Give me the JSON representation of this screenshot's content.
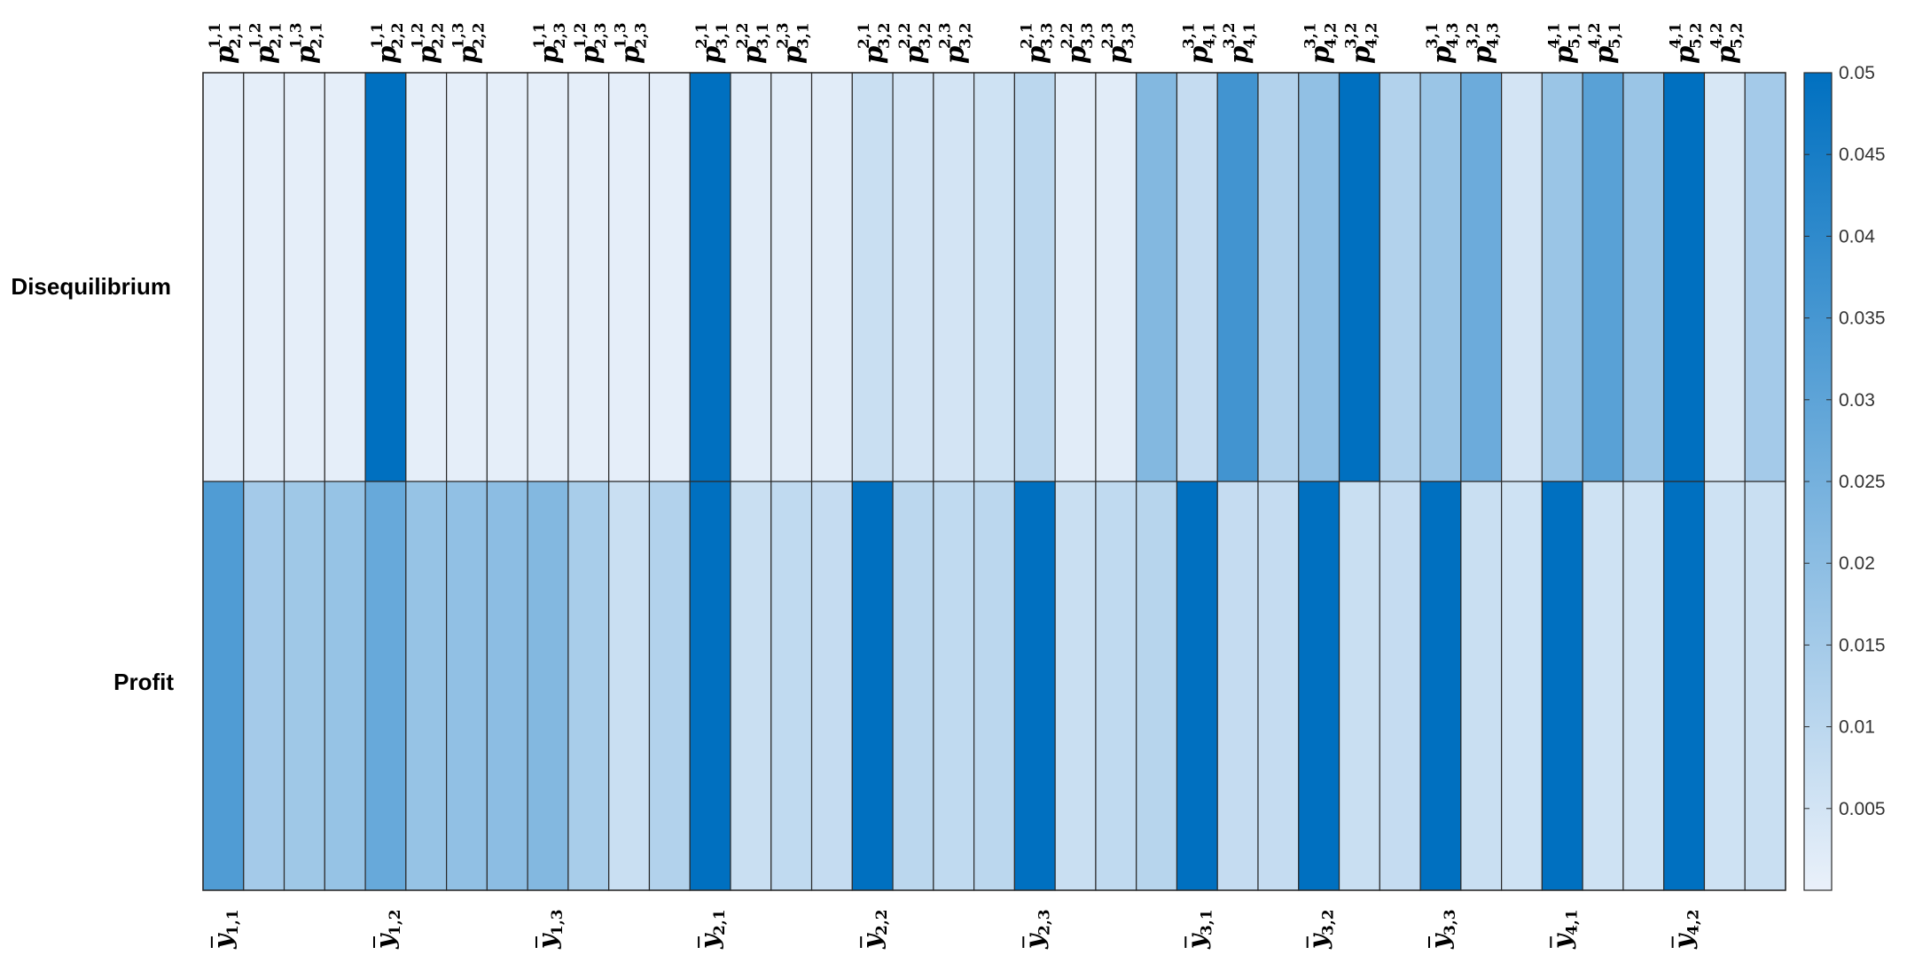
{
  "chart_data": {
    "type": "heatmap",
    "rows": [
      "Disequilibrium",
      "Profit"
    ],
    "top_labels": [
      {
        "s": "2,1",
        "u": "1,1"
      },
      {
        "s": "2,1",
        "u": "1,2"
      },
      {
        "s": "2,1",
        "u": "1,3"
      },
      {
        "s": "",
        "u": ""
      },
      {
        "s": "2,2",
        "u": "1,1"
      },
      {
        "s": "2,2",
        "u": "1,2"
      },
      {
        "s": "2,2",
        "u": "1,3"
      },
      {
        "s": "",
        "u": ""
      },
      {
        "s": "2,3",
        "u": "1,1"
      },
      {
        "s": "2,3",
        "u": "1,2"
      },
      {
        "s": "2,3",
        "u": "1,3"
      },
      {
        "s": "",
        "u": ""
      },
      {
        "s": "3,1",
        "u": "2,1"
      },
      {
        "s": "3,1",
        "u": "2,2"
      },
      {
        "s": "3,1",
        "u": "2,3"
      },
      {
        "s": "",
        "u": ""
      },
      {
        "s": "3,2",
        "u": "2,1"
      },
      {
        "s": "3,2",
        "u": "2,2"
      },
      {
        "s": "3,2",
        "u": "2,3"
      },
      {
        "s": "",
        "u": ""
      },
      {
        "s": "3,3",
        "u": "2,1"
      },
      {
        "s": "3,3",
        "u": "2,2"
      },
      {
        "s": "3,3",
        "u": "2,3"
      },
      {
        "s": "",
        "u": ""
      },
      {
        "s": "4,1",
        "u": "3,1"
      },
      {
        "s": "4,1",
        "u": "3,2"
      },
      {
        "s": "",
        "u": ""
      },
      {
        "s": "4,2",
        "u": "3,1"
      },
      {
        "s": "4,2",
        "u": "3,2"
      },
      {
        "s": "",
        "u": ""
      },
      {
        "s": "4,3",
        "u": "3,1"
      },
      {
        "s": "4,3",
        "u": "3,2"
      },
      {
        "s": "",
        "u": ""
      },
      {
        "s": "5,1",
        "u": "4,1"
      },
      {
        "s": "5,1",
        "u": "4,2"
      },
      {
        "s": "",
        "u": ""
      },
      {
        "s": "5,2",
        "u": "4,1"
      },
      {
        "s": "5,2",
        "u": "4,2"
      },
      {
        "s": "",
        "u": ""
      }
    ],
    "bottom_labels": [
      {
        "s": "1,1"
      },
      {
        "s": ""
      },
      {
        "s": ""
      },
      {
        "s": ""
      },
      {
        "s": "1,2"
      },
      {
        "s": ""
      },
      {
        "s": ""
      },
      {
        "s": ""
      },
      {
        "s": "1,3"
      },
      {
        "s": ""
      },
      {
        "s": ""
      },
      {
        "s": ""
      },
      {
        "s": "2,1"
      },
      {
        "s": ""
      },
      {
        "s": ""
      },
      {
        "s": ""
      },
      {
        "s": "2,2"
      },
      {
        "s": ""
      },
      {
        "s": ""
      },
      {
        "s": ""
      },
      {
        "s": "2,3"
      },
      {
        "s": ""
      },
      {
        "s": ""
      },
      {
        "s": ""
      },
      {
        "s": "3,1"
      },
      {
        "s": ""
      },
      {
        "s": ""
      },
      {
        "s": "3,2"
      },
      {
        "s": ""
      },
      {
        "s": ""
      },
      {
        "s": "3,3"
      },
      {
        "s": ""
      },
      {
        "s": ""
      },
      {
        "s": "4,1"
      },
      {
        "s": ""
      },
      {
        "s": ""
      },
      {
        "s": "4,2"
      },
      {
        "s": ""
      },
      {
        "s": ""
      }
    ],
    "values": [
      [
        0.001,
        0.001,
        0.001,
        0.001,
        0.05,
        0.001,
        0.001,
        0.001,
        0.001,
        0.001,
        0.001,
        0.001,
        0.05,
        0.002,
        0.002,
        0.002,
        0.007,
        0.005,
        0.005,
        0.006,
        0.01,
        0.002,
        0.002,
        0.022,
        0.008,
        0.036,
        0.012,
        0.019,
        0.05,
        0.012,
        0.017,
        0.027,
        0.005,
        0.017,
        0.031,
        0.017,
        0.05,
        0.004,
        0.015
      ],
      [
        0.033,
        0.015,
        0.016,
        0.018,
        0.028,
        0.018,
        0.019,
        0.02,
        0.022,
        0.014,
        0.007,
        0.012,
        0.05,
        0.007,
        0.009,
        0.008,
        0.05,
        0.01,
        0.009,
        0.01,
        0.05,
        0.007,
        0.009,
        0.011,
        0.05,
        0.008,
        0.008,
        0.05,
        0.007,
        0.008,
        0.05,
        0.007,
        0.006,
        0.05,
        0.006,
        0.006,
        0.05,
        0.006,
        0.007
      ]
    ],
    "colorbar": {
      "min": 0,
      "max": 0.05,
      "ticks": [
        "0.005",
        "0.01",
        "0.015",
        "0.02",
        "0.025",
        "0.03",
        "0.035",
        "0.04",
        "0.045",
        "0.05"
      ],
      "color_low": "#eaf1fa",
      "color_high": "#0070c0"
    },
    "colors": {
      "grid": "#2b2b2b",
      "text": "#000000"
    }
  }
}
